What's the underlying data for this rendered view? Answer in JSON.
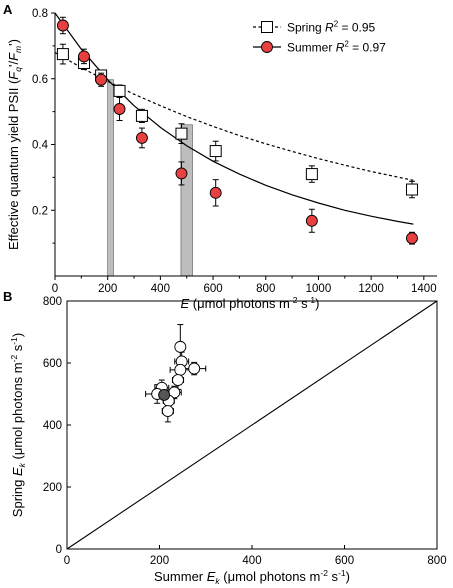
{
  "chart_data": [
    {
      "panel": "A",
      "type": "scatter",
      "xlabel": "E (µmol photons m⁻² s⁻¹)",
      "xlabel_parts": {
        "symbol": "E",
        "unit_prefix": " (μmol photons m",
        "exp1": "-2",
        "mid": " s",
        "exp2": "-1",
        "close": ")"
      },
      "ylabel": "Effective quantum yield PSII (Fq′/Fm′)",
      "ylabel_parts": {
        "prefix": "Effective quantum yield PSII (",
        "a": "F",
        "a_sub": "q",
        "a_prime": "'",
        "slash": "/",
        "b": "F",
        "b_sub": "m",
        "b_prime": "'",
        "close": ")"
      },
      "xlim": [
        0,
        1450
      ],
      "ylim": [
        0,
        0.8
      ],
      "xticks": [
        0,
        200,
        400,
        600,
        800,
        1000,
        1200,
        1400
      ],
      "yticks": [
        0.2,
        0.4,
        0.6,
        0.8
      ],
      "ytick_labels": [
        "0.2",
        "0.4",
        "0.6",
        "0.8"
      ],
      "grid": false,
      "legend_position": "top-right",
      "series": [
        {
          "name": "Spring R² = 0.95",
          "name_parts": {
            "label": "Spring ",
            "r": "R",
            "exp": "2",
            "value": " = 0.95"
          },
          "marker": "open-square",
          "color": "#000000",
          "fill": "#ffffff",
          "fit_line": "dotted",
          "points": [
            {
              "x": 30,
              "y": 0.675,
              "err": 0.03
            },
            {
              "x": 110,
              "y": 0.648,
              "err": 0.02
            },
            {
              "x": 175,
              "y": 0.61,
              "err": 0.015
            },
            {
              "x": 245,
              "y": 0.563,
              "err": 0.018
            },
            {
              "x": 330,
              "y": 0.487,
              "err": 0.02
            },
            {
              "x": 480,
              "y": 0.433,
              "err": 0.03
            },
            {
              "x": 610,
              "y": 0.38,
              "err": 0.03
            },
            {
              "x": 975,
              "y": 0.31,
              "err": 0.025
            },
            {
              "x": 1355,
              "y": 0.263,
              "err": 0.025
            }
          ],
          "fit": [
            [
              0,
              0.68
            ],
            [
              100,
              0.634
            ],
            [
              200,
              0.592
            ],
            [
              300,
              0.553
            ],
            [
              400,
              0.518
            ],
            [
              500,
              0.485
            ],
            [
              600,
              0.455
            ],
            [
              700,
              0.427
            ],
            [
              800,
              0.402
            ],
            [
              900,
              0.379
            ],
            [
              1000,
              0.357
            ],
            [
              1100,
              0.337
            ],
            [
              1200,
              0.318
            ],
            [
              1300,
              0.301
            ],
            [
              1360,
              0.291
            ]
          ]
        },
        {
          "name": "Summer R² = 0.97",
          "name_parts": {
            "label": "Summer ",
            "r": "R",
            "exp": "2",
            "value": " = 0.97"
          },
          "marker": "filled-circle",
          "color": "#000000",
          "fill": "#e84040",
          "fit_line": "solid",
          "points": [
            {
              "x": 30,
              "y": 0.762,
              "err": 0.025
            },
            {
              "x": 110,
              "y": 0.668,
              "err": 0.022
            },
            {
              "x": 175,
              "y": 0.597,
              "err": 0.02
            },
            {
              "x": 245,
              "y": 0.508,
              "err": 0.035
            },
            {
              "x": 330,
              "y": 0.42,
              "err": 0.03
            },
            {
              "x": 480,
              "y": 0.312,
              "err": 0.035
            },
            {
              "x": 610,
              "y": 0.253,
              "err": 0.04
            },
            {
              "x": 975,
              "y": 0.168,
              "err": 0.035
            },
            {
              "x": 1355,
              "y": 0.115,
              "err": 0.018
            }
          ],
          "fit": [
            [
              0,
              0.8
            ],
            [
              100,
              0.69
            ],
            [
              200,
              0.597
            ],
            [
              300,
              0.518
            ],
            [
              400,
              0.452
            ],
            [
              500,
              0.396
            ],
            [
              600,
              0.349
            ],
            [
              700,
              0.31
            ],
            [
              800,
              0.276
            ],
            [
              900,
              0.247
            ],
            [
              1000,
              0.222
            ],
            [
              1100,
              0.2
            ],
            [
              1200,
              0.182
            ],
            [
              1300,
              0.166
            ],
            [
              1360,
              0.158
            ]
          ]
        }
      ],
      "shaded_bands": [
        {
          "x0": 200,
          "x1": 222
        },
        {
          "x0": 478,
          "x1": 522
        }
      ]
    },
    {
      "panel": "B",
      "type": "scatter",
      "xlabel": "Summer Ek (µmol photons m⁻² s⁻¹)",
      "xlabel_parts": {
        "prefix": "Summer ",
        "symbol": "E",
        "sub": "k",
        "unit_prefix": " (μmol photons m",
        "exp1": "-2",
        "mid": " s",
        "exp2": "-1",
        "close": ")"
      },
      "ylabel": "Spring Ek (µmol photons m⁻² s⁻¹)",
      "ylabel_parts": {
        "prefix": "Spring ",
        "symbol": "E",
        "sub": "k",
        "unit_prefix": " (μmol photons m",
        "exp1": "-2",
        "mid": " s",
        "exp2": "-1",
        "close": ")"
      },
      "xlim": [
        0,
        800
      ],
      "ylim": [
        0,
        800
      ],
      "xticks": [
        0,
        200,
        400,
        600,
        800
      ],
      "yticks": [
        0,
        200,
        400,
        600,
        800
      ],
      "grid": false,
      "reference_line": "1:1",
      "points": [
        {
          "x": 245,
          "y": 652,
          "xerr": 8,
          "yerr": 72,
          "fill": "#ffffff"
        },
        {
          "x": 248,
          "y": 605,
          "xerr": 15,
          "yerr": 30,
          "fill": "#ffffff"
        },
        {
          "x": 245,
          "y": 578,
          "xerr": 22,
          "yerr": 35,
          "fill": "#ffffff"
        },
        {
          "x": 275,
          "y": 582,
          "xerr": 25,
          "yerr": 20,
          "fill": "#ffffff"
        },
        {
          "x": 240,
          "y": 545,
          "xerr": 12,
          "yerr": 30,
          "fill": "#ffffff"
        },
        {
          "x": 205,
          "y": 520,
          "xerr": 15,
          "yerr": 25,
          "fill": "#ffffff"
        },
        {
          "x": 232,
          "y": 505,
          "xerr": 15,
          "yerr": 20,
          "fill": "#ffffff"
        },
        {
          "x": 195,
          "y": 500,
          "xerr": 25,
          "yerr": 30,
          "fill": "#ffffff"
        },
        {
          "x": 220,
          "y": 478,
          "xerr": 12,
          "yerr": 22,
          "fill": "#ffffff"
        },
        {
          "x": 218,
          "y": 445,
          "xerr": 12,
          "yerr": 35,
          "fill": "#ffffff"
        },
        {
          "x": 210,
          "y": 497,
          "xerr": 12,
          "yerr": 15,
          "fill": "#555555"
        }
      ]
    }
  ]
}
